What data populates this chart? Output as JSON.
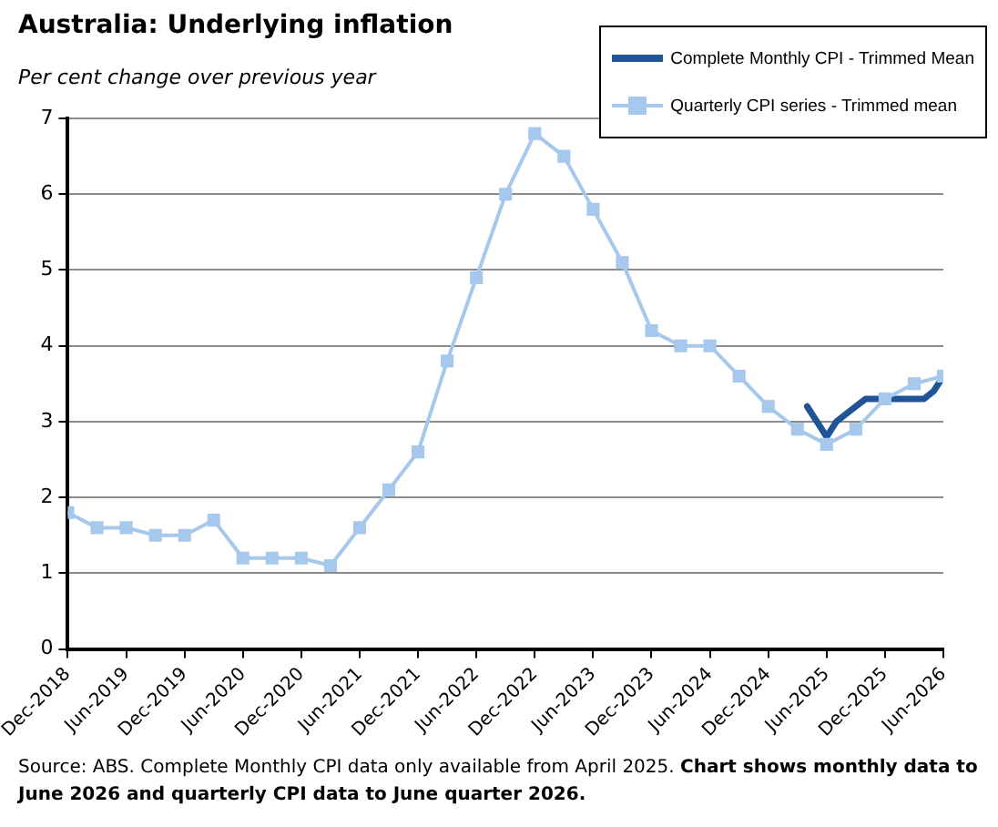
{
  "chart_data": {
    "type": "line",
    "title": "Australia: Underlying inflation",
    "ylabel": "Per cent change over previous year",
    "xlim": [
      "2018-12",
      "2026-06"
    ],
    "xticks": [
      {
        "value": "2018-12",
        "label": "Dec-2018"
      },
      {
        "value": "2019-06",
        "label": "Jun-2019"
      },
      {
        "value": "2019-12",
        "label": "Dec-2019"
      },
      {
        "value": "2020-06",
        "label": "Jun-2020"
      },
      {
        "value": "2020-12",
        "label": "Dec-2020"
      },
      {
        "value": "2021-06",
        "label": "Jun-2021"
      },
      {
        "value": "2021-12",
        "label": "Dec-2021"
      },
      {
        "value": "2022-06",
        "label": "Jun-2022"
      },
      {
        "value": "2022-12",
        "label": "Dec-2022"
      },
      {
        "value": "2023-06",
        "label": "Jun-2023"
      },
      {
        "value": "2023-12",
        "label": "Dec-2023"
      },
      {
        "value": "2024-06",
        "label": "Jun-2024"
      },
      {
        "value": "2024-12",
        "label": "Dec-2024"
      },
      {
        "value": "2025-06",
        "label": "Jun-2025"
      },
      {
        "value": "2025-12",
        "label": "Dec-2025"
      },
      {
        "value": "2026-06",
        "label": "Jun-2026"
      }
    ],
    "ylim": [
      0,
      7
    ],
    "yticks": [
      0,
      1,
      2,
      3,
      4,
      5,
      6,
      7
    ],
    "grid": "y",
    "legend": "top right",
    "series": [
      {
        "name": "Complete Monthly CPI - Trimmed Mean",
        "color": "#1f5596",
        "marker": "none",
        "x": [
          "2025-04",
          "2025-05",
          "2025-06",
          "2025-07",
          "2025-08",
          "2025-09",
          "2025-10",
          "2025-11",
          "2025-12",
          "2026-01",
          "2026-02",
          "2026-03",
          "2026-04",
          "2026-05",
          "2026-06"
        ],
        "values": [
          3.2,
          3.0,
          2.8,
          3.0,
          3.1,
          3.2,
          3.3,
          3.3,
          3.3,
          3.3,
          3.3,
          3.3,
          3.3,
          3.4,
          3.6
        ]
      },
      {
        "name": "Quarterly CPI series - Trimmed mean",
        "color": "#a5c8ec",
        "marker": "square",
        "x": [
          "2018-12",
          "2019-03",
          "2019-06",
          "2019-09",
          "2019-12",
          "2020-03",
          "2020-06",
          "2020-09",
          "2020-12",
          "2021-03",
          "2021-06",
          "2021-09",
          "2021-12",
          "2022-03",
          "2022-06",
          "2022-09",
          "2022-12",
          "2023-03",
          "2023-06",
          "2023-09",
          "2023-12",
          "2024-03",
          "2024-06",
          "2024-09",
          "2024-12",
          "2025-03",
          "2025-06",
          "2025-09",
          "2025-12",
          "2026-03",
          "2026-06"
        ],
        "values": [
          1.8,
          1.6,
          1.6,
          1.5,
          1.5,
          1.7,
          1.2,
          1.2,
          1.2,
          1.1,
          1.6,
          2.1,
          2.6,
          3.8,
          4.9,
          6.0,
          6.8,
          6.5,
          5.8,
          5.1,
          4.2,
          4.0,
          4.0,
          3.6,
          3.2,
          2.9,
          2.7,
          2.9,
          3.3,
          3.5,
          3.6
        ]
      }
    ],
    "annotations": [
      "Source: ABS. Complete Monthly CPI data only available from April 2025.",
      "Chart shows monthly data to June 2026 and quarterly CPI data to June quarter 2026."
    ]
  }
}
